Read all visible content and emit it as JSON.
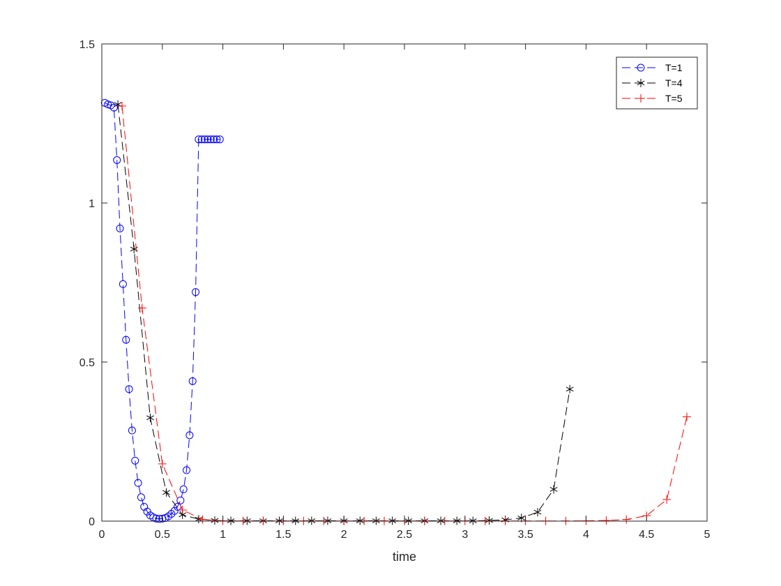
{
  "chart_data": {
    "type": "line",
    "title": "",
    "xlabel": "time",
    "ylabel": "",
    "xlim": [
      0,
      5
    ],
    "ylim": [
      0,
      1.5
    ],
    "xticks": [
      "0",
      "0.5",
      "1",
      "1.5",
      "2",
      "2.5",
      "3",
      "3.5",
      "4",
      "4.5",
      "5"
    ],
    "yticks": [
      "0",
      "0.5",
      "1",
      "1.5"
    ],
    "grid": false,
    "legend_position": "top-right",
    "series": [
      {
        "name": "T=1",
        "color": "#0000ff",
        "marker": "circle",
        "line_style": "dashed",
        "x": [
          0.025,
          0.05,
          0.075,
          0.1,
          0.125,
          0.15,
          0.175,
          0.2,
          0.225,
          0.25,
          0.275,
          0.3,
          0.325,
          0.35,
          0.375,
          0.4,
          0.425,
          0.45,
          0.475,
          0.5,
          0.525,
          0.55,
          0.575,
          0.6,
          0.625,
          0.65,
          0.675,
          0.7,
          0.725,
          0.75,
          0.775,
          0.8,
          0.825,
          0.85,
          0.875,
          0.9,
          0.925,
          0.95,
          0.975
        ],
        "y": [
          1.315,
          1.31,
          1.307,
          1.3,
          1.135,
          0.92,
          0.745,
          0.57,
          0.415,
          0.285,
          0.19,
          0.12,
          0.075,
          0.045,
          0.03,
          0.018,
          0.012,
          0.008,
          0.007,
          0.008,
          0.01,
          0.015,
          0.023,
          0.032,
          0.045,
          0.065,
          0.1,
          0.16,
          0.27,
          0.44,
          0.72,
          1.2,
          1.2,
          1.2,
          1.2,
          1.2,
          1.2,
          1.2,
          1.2
        ]
      },
      {
        "name": "T=4",
        "color": "#000000",
        "marker": "asterisk",
        "line_style": "dashed",
        "x": [
          0.133,
          0.266,
          0.4,
          0.533,
          0.666,
          0.8,
          0.933,
          1.066,
          1.2,
          1.333,
          1.466,
          1.6,
          1.733,
          1.866,
          2.0,
          2.133,
          2.266,
          2.4,
          2.533,
          2.666,
          2.8,
          2.933,
          3.066,
          3.2,
          3.333,
          3.466,
          3.6,
          3.733,
          3.866
        ],
        "y": [
          1.31,
          0.855,
          0.325,
          0.09,
          0.02,
          0.006,
          0.002,
          0.001,
          0.001,
          0.001,
          0.001,
          0.001,
          0.001,
          0.001,
          0.001,
          0.001,
          0.001,
          0.001,
          0.001,
          0.001,
          0.001,
          0.001,
          0.001,
          0.002,
          0.004,
          0.01,
          0.028,
          0.1,
          0.415
        ]
      },
      {
        "name": "T=5",
        "color": "#ff0000",
        "marker": "plus",
        "line_style": "dashed",
        "x": [
          0.167,
          0.333,
          0.5,
          0.667,
          0.833,
          1.0,
          1.167,
          1.333,
          1.5,
          1.667,
          1.833,
          2.0,
          2.167,
          2.333,
          2.5,
          2.667,
          2.833,
          3.0,
          3.167,
          3.333,
          3.5,
          3.667,
          3.833,
          4.0,
          4.167,
          4.333,
          4.5,
          4.667,
          4.833
        ],
        "y": [
          1.305,
          0.67,
          0.18,
          0.035,
          0.005,
          0.001,
          0.0005,
          0.0005,
          0.0005,
          0.0005,
          0.0005,
          0.0005,
          0.0005,
          0.0005,
          0.0005,
          0.0005,
          0.0005,
          0.0005,
          0.0005,
          0.0005,
          0.0005,
          0.0005,
          0.0005,
          0.001,
          0.002,
          0.005,
          0.017,
          0.068,
          0.328
        ]
      }
    ]
  }
}
